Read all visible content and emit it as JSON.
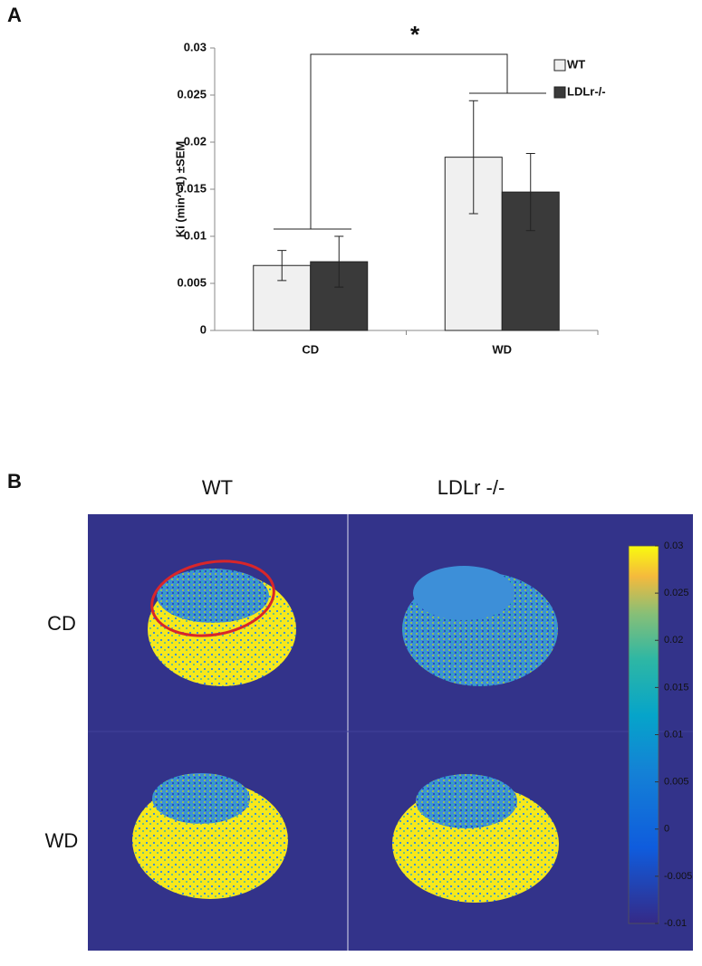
{
  "chart_data": [
    {
      "type": "bar",
      "panel_label": "A",
      "annotation": "*",
      "y_label": "Ki (min^-1) ±SEM",
      "categories": [
        "CD",
        "WD"
      ],
      "series": [
        {
          "name": "WT",
          "color": "#f0f0f0",
          "values": [
            0.0069,
            0.0184
          ],
          "errors": [
            0.0016,
            0.006
          ]
        },
        {
          "name": "LDLr-/-",
          "color": "#3a3a3a",
          "values": [
            0.0073,
            0.0147
          ],
          "errors": [
            0.0027,
            0.0041
          ]
        }
      ],
      "ylim": [
        0,
        0.03
      ],
      "yticks": [
        0,
        0.005,
        0.01,
        0.015,
        0.02,
        0.025,
        0.03
      ],
      "grid": false
    },
    {
      "type": "colorbar",
      "panel_label": "B",
      "columns": [
        "WT",
        "LDLr -/-"
      ],
      "rows": [
        "CD",
        "WD"
      ],
      "ylim": [
        -0.01,
        0.03
      ],
      "yticks": [
        -0.01,
        -0.005,
        0,
        0.005,
        0.01,
        0.015,
        0.02,
        0.025,
        0.03
      ]
    }
  ]
}
